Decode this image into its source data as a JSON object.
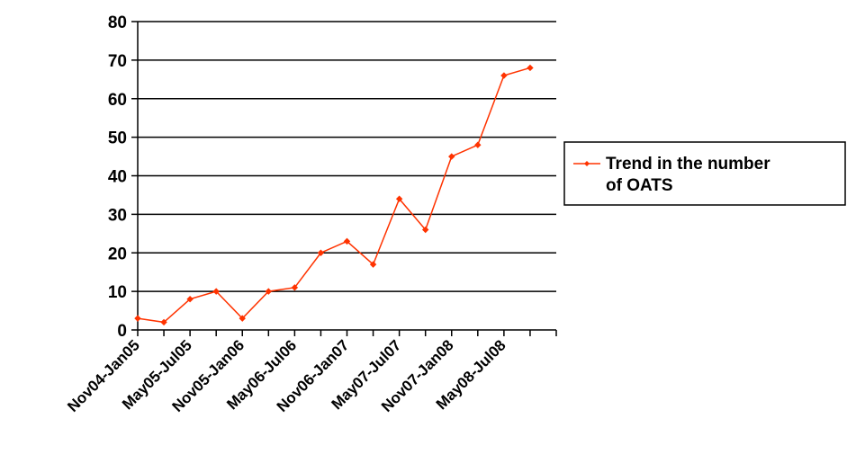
{
  "chart_data": {
    "type": "line",
    "categories": [
      "Nov04-Jan05",
      "",
      "May05-Jul05",
      "",
      "Nov05-Jan06",
      "",
      "May06-Jul06",
      "",
      "Nov06-Jan07",
      "",
      "May07-Jul07",
      "",
      "Nov07-Jan08",
      "",
      "May08-Jul08",
      ""
    ],
    "series": [
      {
        "name": "Trend in the number of OATS",
        "values": [
          3,
          2,
          8,
          10,
          3,
          10,
          11,
          20,
          23,
          17,
          34,
          26,
          45,
          48,
          66,
          68
        ],
        "color": "#ff3300"
      }
    ],
    "title": "",
    "xlabel": "",
    "ylabel": "",
    "ylim": [
      0,
      80
    ],
    "yticks": [
      "0",
      "10",
      "20",
      "30",
      "40",
      "50",
      "60",
      "70",
      "80"
    ],
    "grid": true,
    "legend": {
      "position": "right",
      "lines": [
        "Trend in the number",
        "of OATS"
      ]
    }
  }
}
